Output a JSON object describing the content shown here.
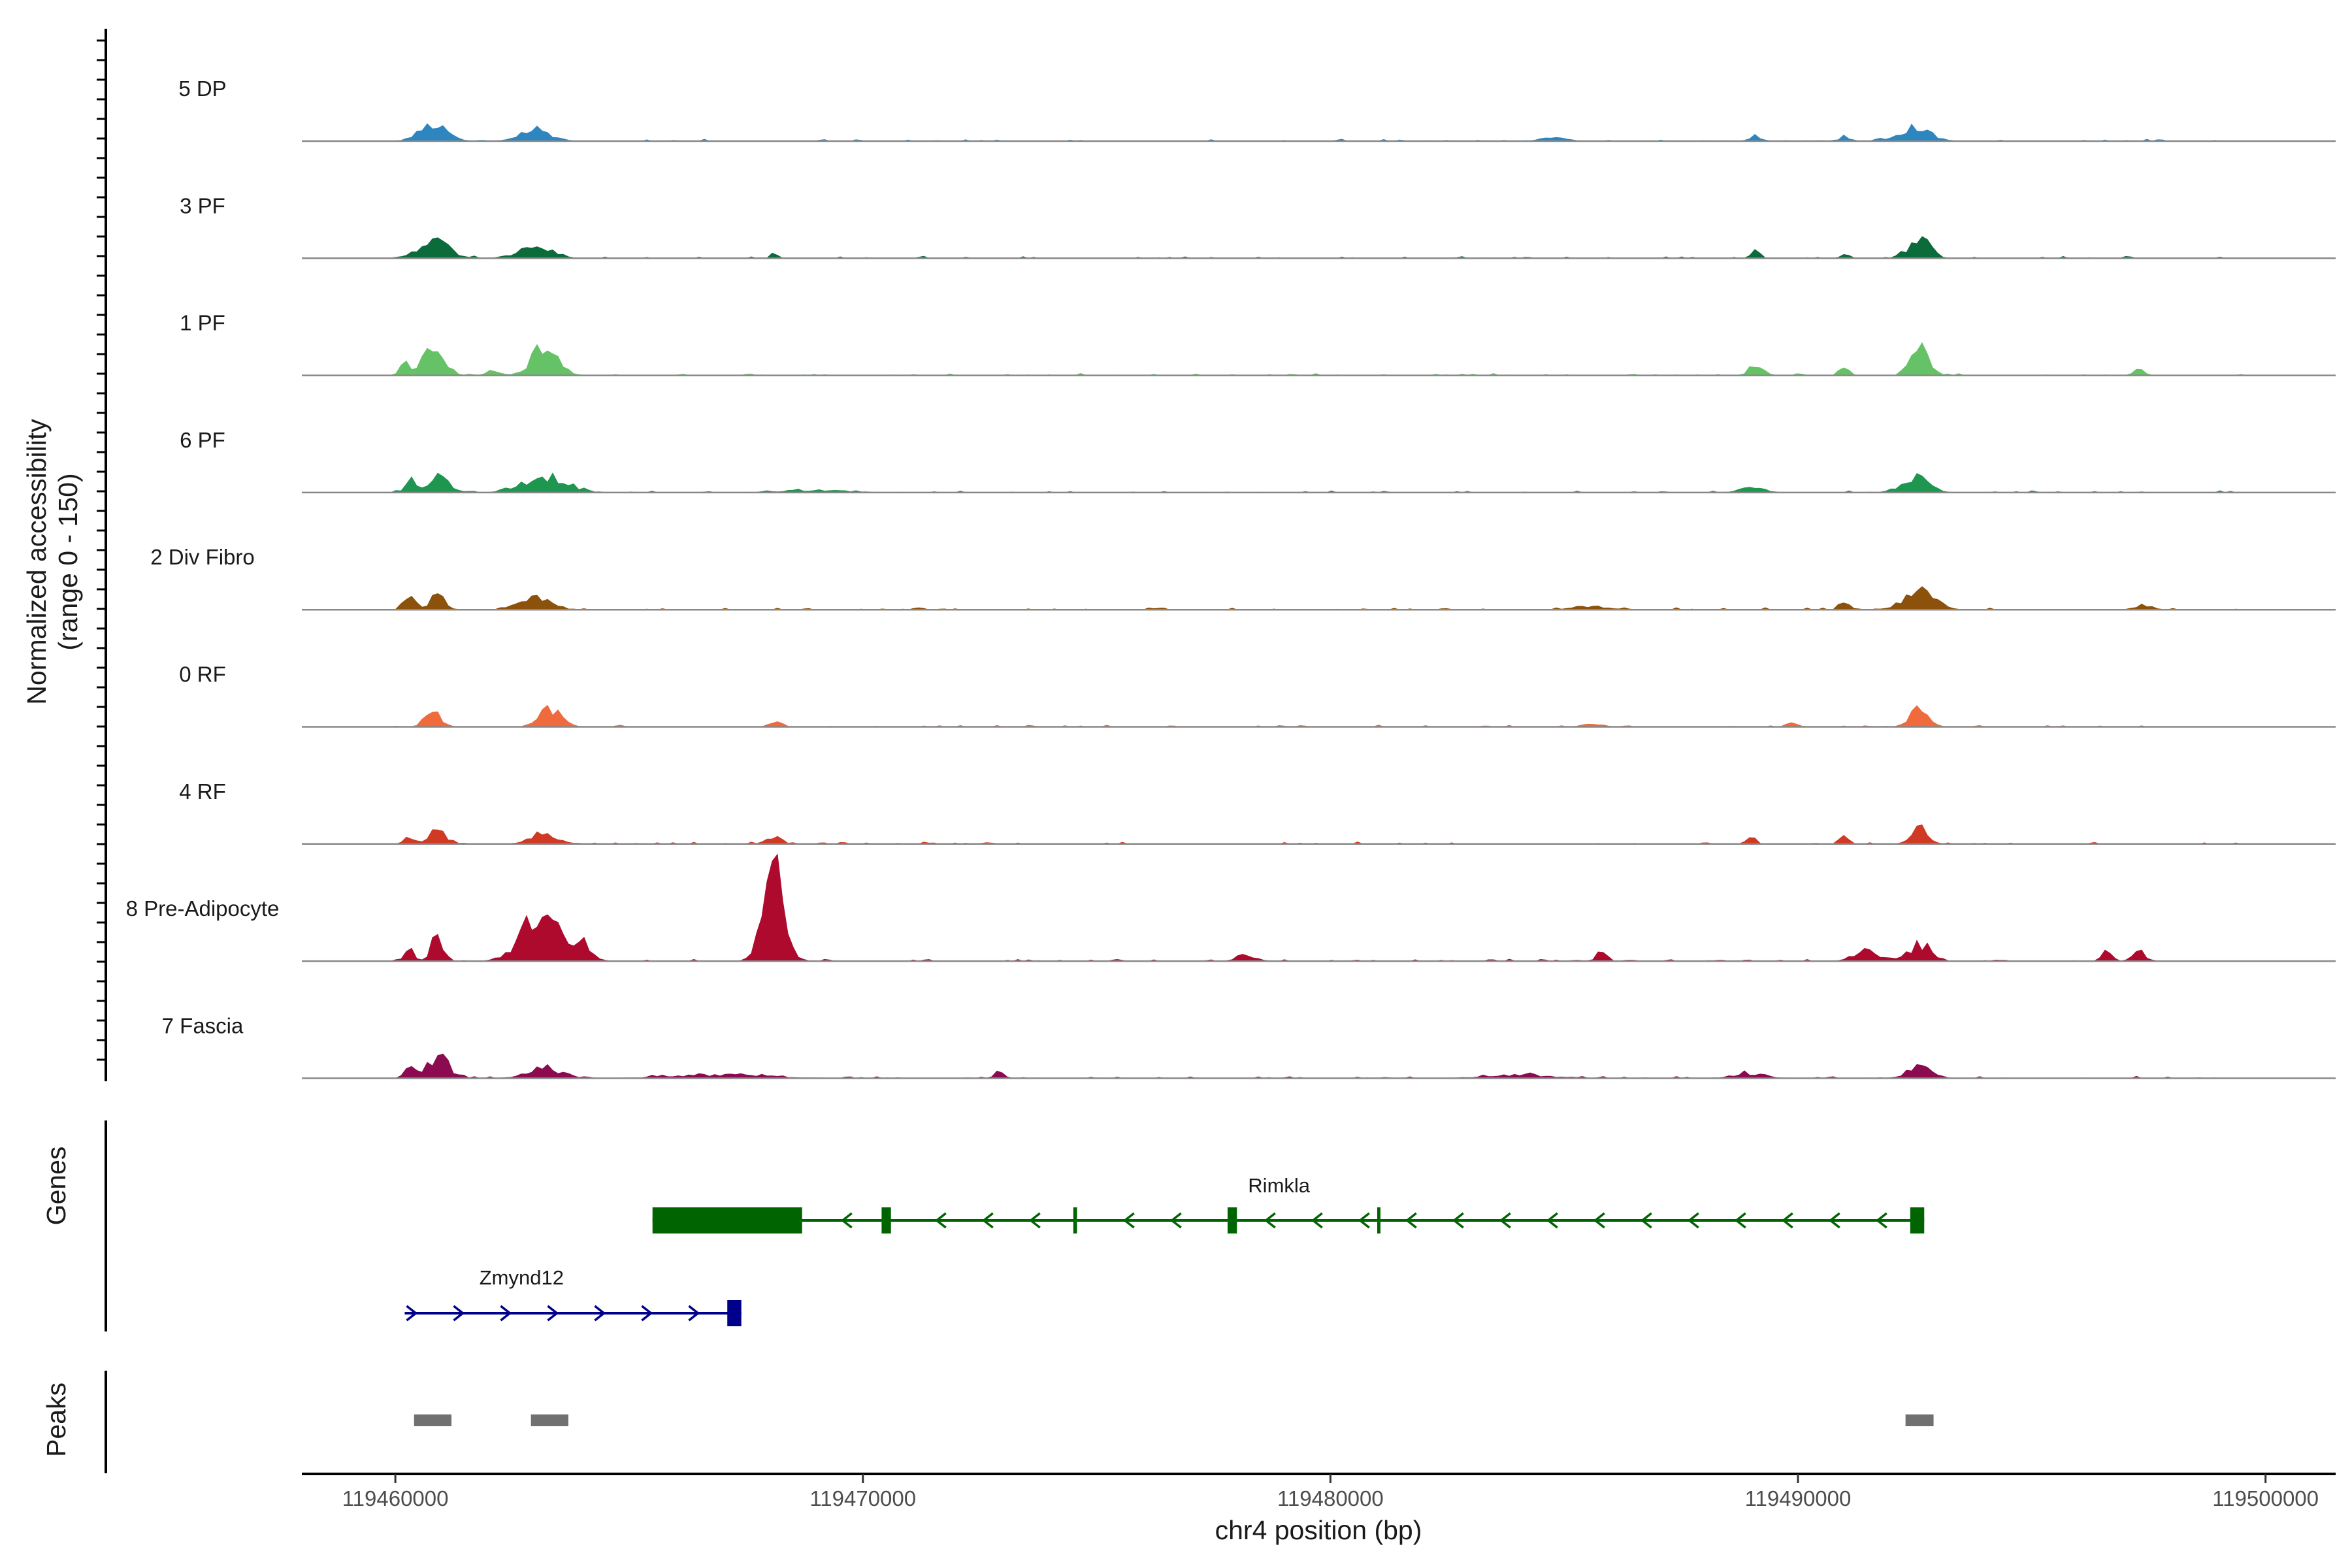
{
  "chart_data": {
    "type": "area",
    "title": "",
    "ylabel_line1": "Normalized accessibility",
    "ylabel_line2": "(range 0 - 150)",
    "y_range": [
      0,
      150
    ],
    "xlabel": "chr4 position (bp)",
    "xlim": [
      119458000,
      119501500
    ],
    "x_ticks": [
      119460000,
      119470000,
      119480000,
      119490000,
      119500000
    ],
    "x_tick_labels": [
      "119460000",
      "119470000",
      "119480000",
      "119490000",
      "119500000"
    ],
    "tracks": [
      {
        "name": "5 DP",
        "color": "#2E86C1",
        "peaks": [
          [
            119460800,
            14,
            900
          ],
          [
            119463000,
            10,
            1000
          ],
          [
            119484800,
            3,
            800
          ],
          [
            119489100,
            4,
            400
          ],
          [
            119491000,
            5,
            300
          ],
          [
            119492500,
            12,
            1000
          ]
        ]
      },
      {
        "name": "3 PF",
        "color": "#0B6B3A",
        "peaks": [
          [
            119460800,
            16,
            1000
          ],
          [
            119463000,
            10,
            1100
          ],
          [
            119468100,
            4,
            200
          ],
          [
            119489100,
            6,
            300
          ],
          [
            119491000,
            4,
            300
          ],
          [
            119492600,
            17,
            700
          ]
        ]
      },
      {
        "name": "1 PF",
        "color": "#66C266",
        "peaks": [
          [
            119460200,
            13,
            300
          ],
          [
            119460800,
            23,
            700
          ],
          [
            119462100,
            4,
            400
          ],
          [
            119463200,
            29,
            800
          ],
          [
            119489100,
            7,
            500
          ],
          [
            119491000,
            6,
            300
          ],
          [
            119492600,
            24,
            600
          ],
          [
            119497300,
            6,
            300
          ]
        ]
      },
      {
        "name": "6 PF",
        "color": "#1E9650",
        "peaks": [
          [
            119460300,
            12,
            300
          ],
          [
            119460900,
            14,
            700
          ],
          [
            119463200,
            15,
            1400
          ],
          [
            119469000,
            2,
            2000
          ],
          [
            119489000,
            4,
            800
          ],
          [
            119492500,
            13,
            900
          ]
        ]
      },
      {
        "name": "2 Div Fibro",
        "color": "#8C510A",
        "peaks": [
          [
            119460300,
            11,
            400
          ],
          [
            119460900,
            12,
            500
          ],
          [
            119463000,
            11,
            1000
          ],
          [
            119485600,
            3,
            1200
          ],
          [
            119491000,
            7,
            300
          ],
          [
            119492600,
            16,
            1000
          ],
          [
            119497400,
            4,
            600
          ]
        ]
      },
      {
        "name": "0 RF",
        "color": "#EF6A3C",
        "peaks": [
          [
            119460800,
            15,
            500
          ],
          [
            119463300,
            16,
            700
          ],
          [
            119468200,
            4,
            300
          ],
          [
            119485600,
            3,
            600
          ],
          [
            119489900,
            3,
            400
          ],
          [
            119492600,
            16,
            600
          ]
        ]
      },
      {
        "name": "4 RF",
        "color": "#D03A25",
        "peaks": [
          [
            119460300,
            7,
            300
          ],
          [
            119460900,
            13,
            500
          ],
          [
            119463200,
            9,
            900
          ],
          [
            119468100,
            6,
            500
          ],
          [
            119489000,
            6,
            300
          ],
          [
            119491000,
            8,
            300
          ],
          [
            119492600,
            19,
            500
          ]
        ]
      },
      {
        "name": "8 Pre-Adipocyte",
        "color": "#AD0A2E",
        "peaks": [
          [
            119460300,
            10,
            300
          ],
          [
            119460900,
            22,
            400
          ],
          [
            119463100,
            44,
            1200
          ],
          [
            119464000,
            16,
            500
          ],
          [
            119468100,
            80,
            700
          ],
          [
            119478200,
            6,
            600
          ],
          [
            119485800,
            9,
            300
          ],
          [
            119491500,
            9,
            800
          ],
          [
            119492600,
            15,
            700
          ],
          [
            119496600,
            9,
            300
          ],
          [
            119497300,
            9,
            400
          ]
        ]
      },
      {
        "name": "7 Fascia",
        "color": "#8B0A50",
        "peaks": [
          [
            119460300,
            10,
            300
          ],
          [
            119460900,
            20,
            700
          ],
          [
            119463200,
            9,
            1100
          ],
          [
            119467000,
            3,
            3000
          ],
          [
            119472900,
            6,
            300
          ],
          [
            119484000,
            3,
            2000
          ],
          [
            119489000,
            4,
            1000
          ],
          [
            119492600,
            10,
            800
          ]
        ]
      }
    ],
    "genes": [
      {
        "name": "Rimkla",
        "strand": "-",
        "start": 119465500,
        "end": 119492700,
        "color": "#006400",
        "exons": [
          [
            119465500,
            119468700
          ],
          [
            119470400,
            119470600
          ],
          [
            119474500,
            119474580
          ],
          [
            119477800,
            119478000
          ],
          [
            119481000,
            119481060
          ],
          [
            119492400,
            119492700
          ]
        ]
      },
      {
        "name": "Zmynd12",
        "strand": "+",
        "start": 119460200,
        "end": 119467400,
        "color": "#00008B",
        "exons": [
          [
            119467100,
            119467400
          ]
        ]
      }
    ],
    "peaks": [
      [
        119460400,
        119461200
      ],
      [
        119462900,
        119463700
      ],
      [
        119492300,
        119492900
      ]
    ],
    "peak_color": "#707070",
    "side_labels": {
      "genes": "Genes",
      "peaks": "Peaks"
    }
  }
}
